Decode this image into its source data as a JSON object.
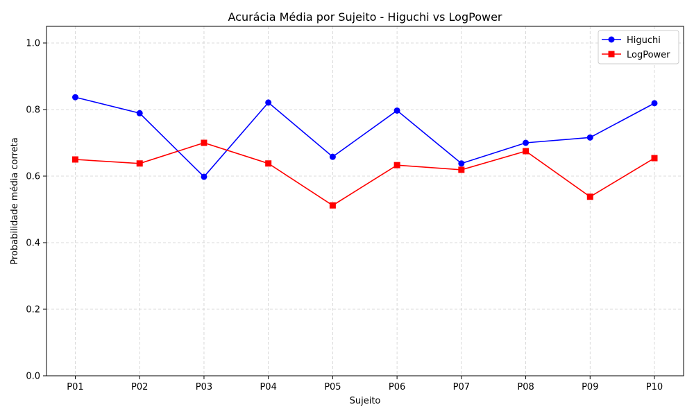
{
  "chart_data": {
    "type": "line",
    "title": "Acurácia Média por Sujeito - Higuchi vs LogPower",
    "xlabel": "Sujeito",
    "ylabel": "Probabilidade média correta",
    "categories": [
      "P01",
      "P02",
      "P03",
      "P04",
      "P05",
      "P06",
      "P07",
      "P08",
      "P09",
      "P10"
    ],
    "ylim": [
      0.0,
      1.05
    ],
    "yticks": [
      "0.0",
      "0.2",
      "0.4",
      "0.6",
      "0.8",
      "1.0"
    ],
    "grid": true,
    "legend_position": "top-right",
    "series": [
      {
        "name": "Higuchi",
        "color": "#0000ff",
        "marker": "circle",
        "values": [
          0.837,
          0.789,
          0.598,
          0.821,
          0.658,
          0.797,
          0.638,
          0.7,
          0.716,
          0.819
        ]
      },
      {
        "name": "LogPower",
        "color": "#ff0000",
        "marker": "square",
        "values": [
          0.65,
          0.638,
          0.7,
          0.638,
          0.512,
          0.633,
          0.619,
          0.675,
          0.538,
          0.654
        ]
      }
    ]
  }
}
